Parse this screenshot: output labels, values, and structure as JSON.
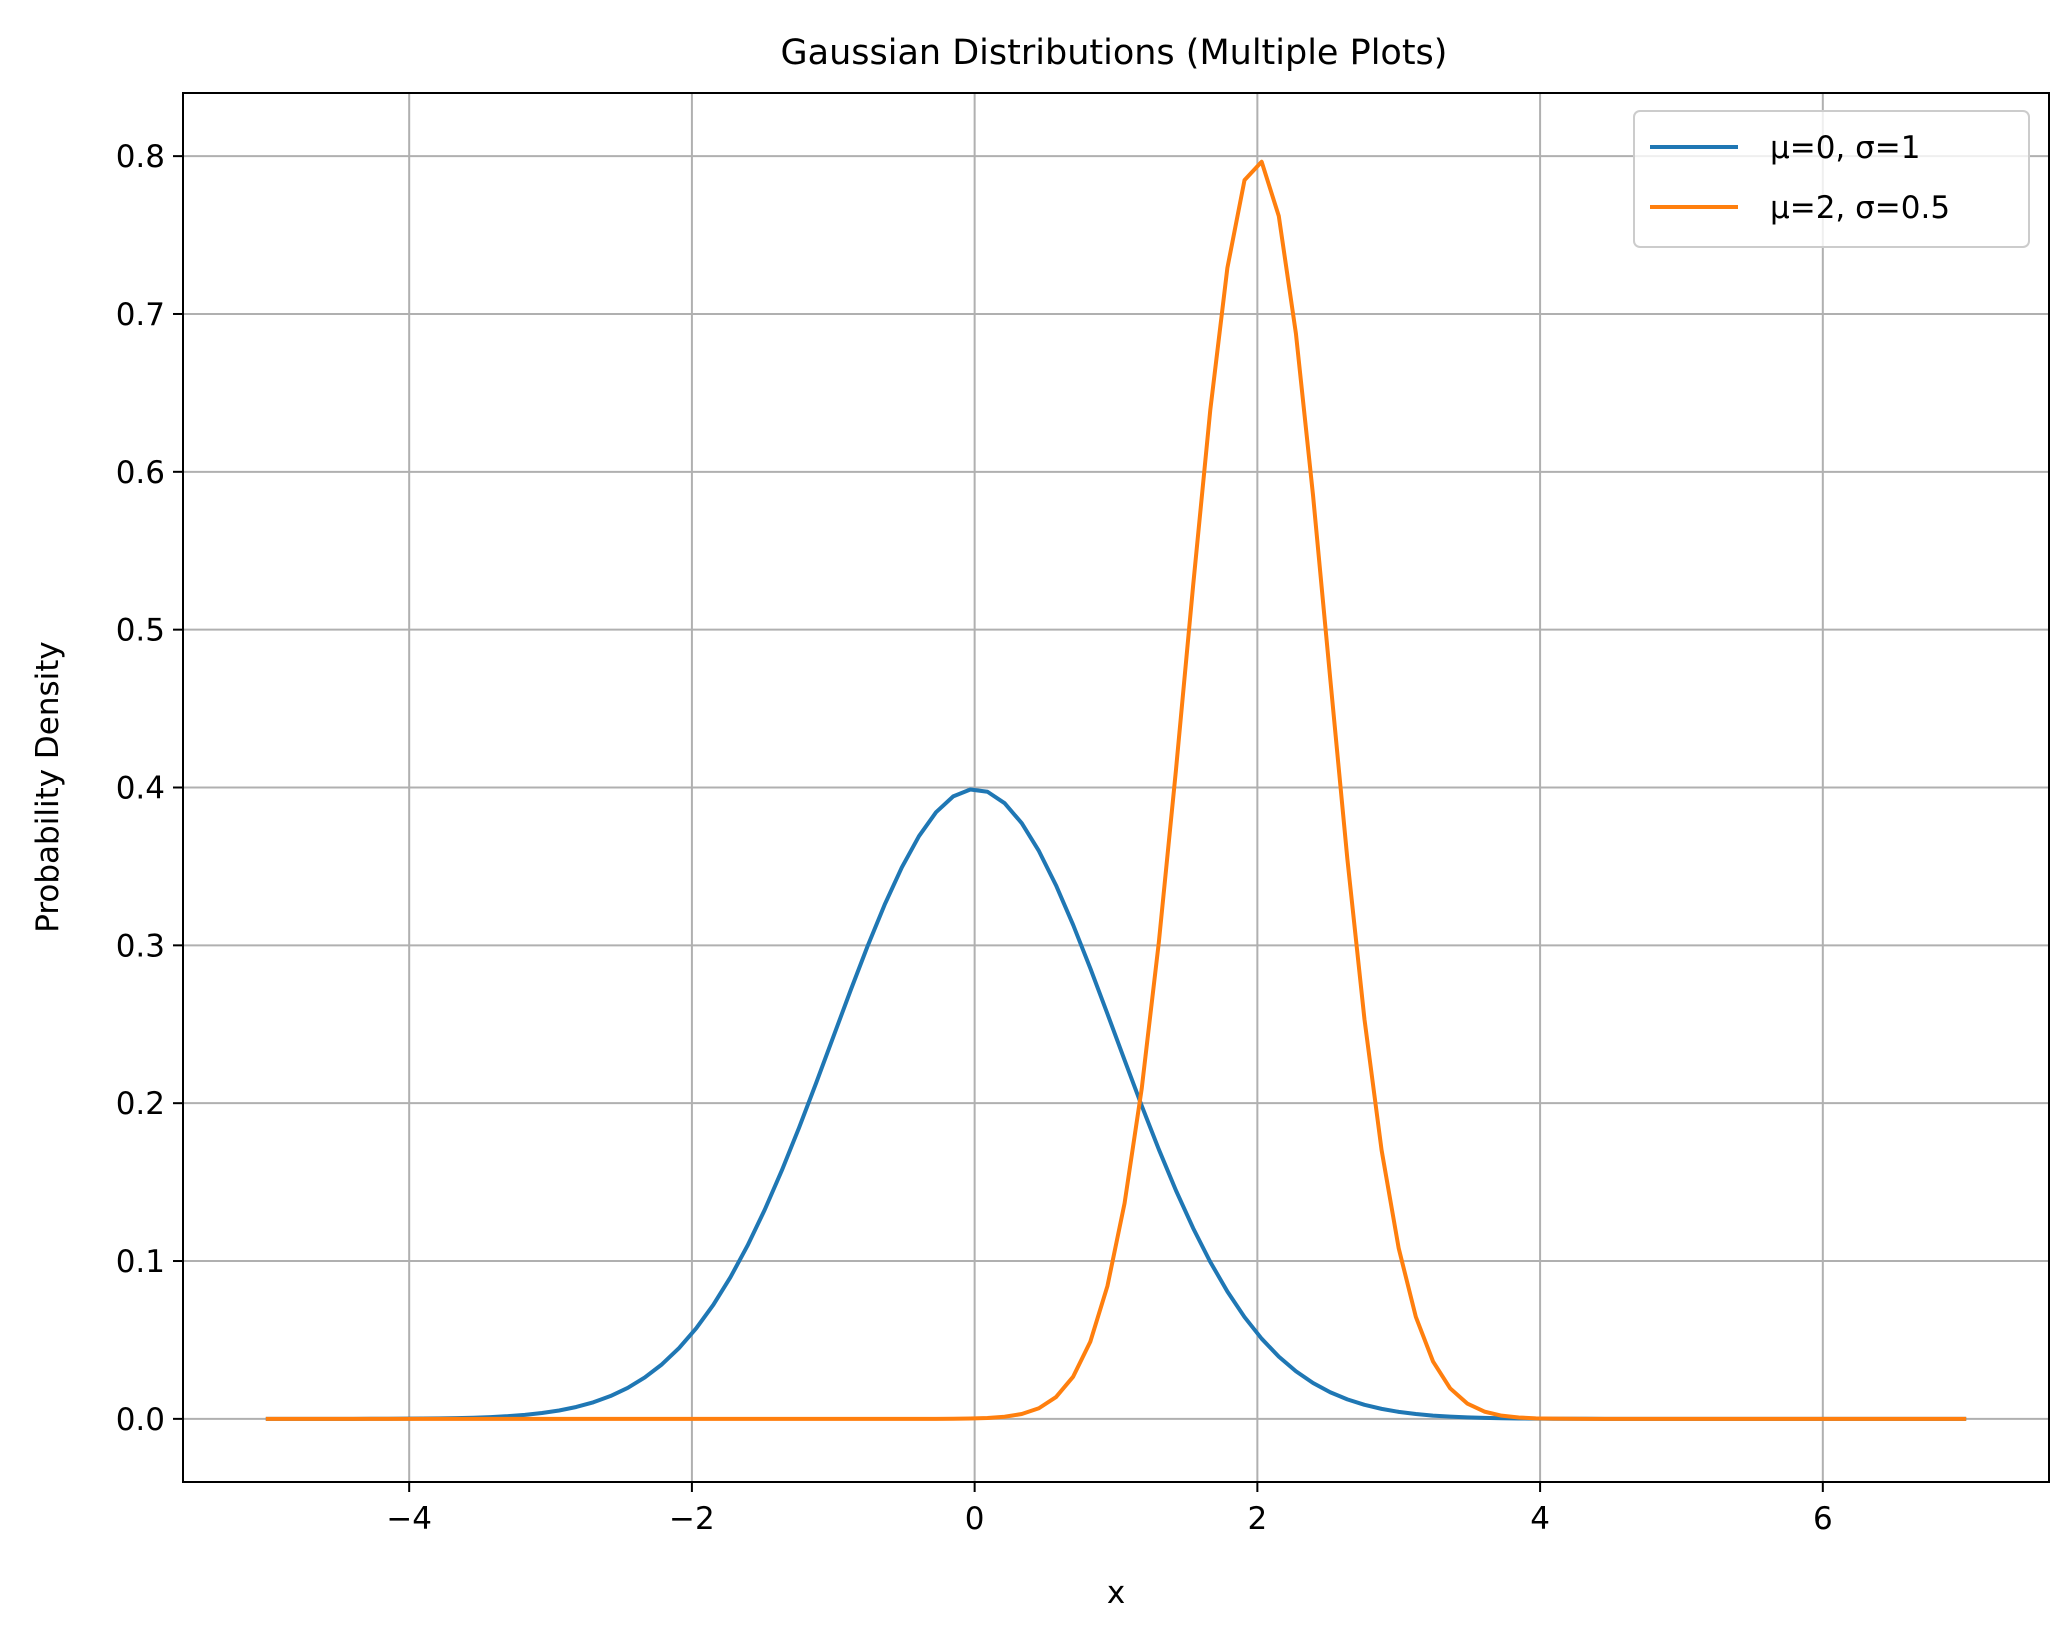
{
  "chart_data": {
    "type": "line",
    "title": "Gaussian Distributions (Multiple Plots)",
    "xlabel": "x",
    "ylabel": "Probability Density",
    "xlim": [
      -5.6,
      7.6
    ],
    "ylim": [
      -0.04,
      0.84
    ],
    "x_range_plotted": [
      -5,
      7
    ],
    "x_ticks": [
      -4,
      -2,
      0,
      2,
      4,
      6
    ],
    "x_tick_labels": [
      "−4",
      "−2",
      "0",
      "2",
      "4",
      "6"
    ],
    "y_ticks": [
      0.0,
      0.1,
      0.2,
      0.3,
      0.4,
      0.5,
      0.6,
      0.7,
      0.8
    ],
    "y_tick_labels": [
      "0.0",
      "0.1",
      "0.2",
      "0.3",
      "0.4",
      "0.5",
      "0.6",
      "0.7",
      "0.8"
    ],
    "grid": true,
    "legend_position": "top-right",
    "series": [
      {
        "name": "μ=0, σ=1",
        "color": "#1f77b4",
        "mu": 0,
        "sigma": 1,
        "peak": 0.399
      },
      {
        "name": "μ=2, σ=0.5",
        "color": "#ff7f0e",
        "mu": 2,
        "sigma": 0.5,
        "peak": 0.798
      }
    ]
  }
}
